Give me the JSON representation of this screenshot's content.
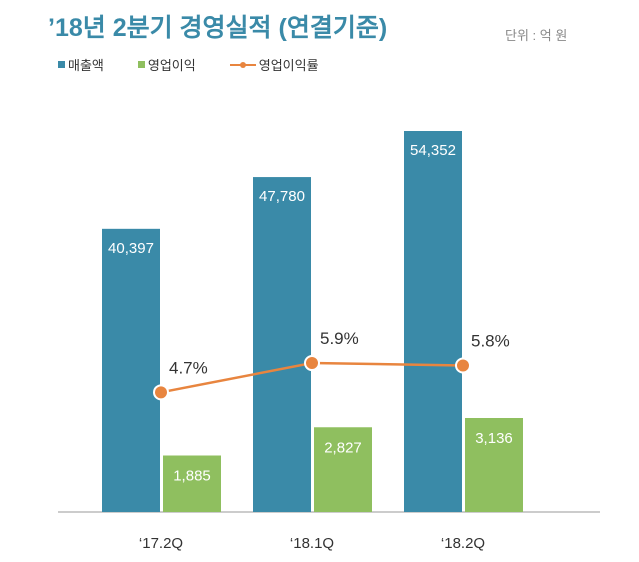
{
  "chart_data": {
    "type": "bar",
    "title": "’18년 2분기 경영실적 (연결기준)",
    "unit": "단위 : 억 원",
    "categories": [
      "‘17.2Q",
      "‘18.1Q",
      "‘18.2Q"
    ],
    "series": [
      {
        "name": "매출액",
        "type": "bar",
        "color": "#3a8aa8",
        "values": [
          40397,
          47780,
          54352
        ],
        "labels": [
          "40,397",
          "47,780",
          "54,352"
        ]
      },
      {
        "name": "영업이익",
        "type": "bar",
        "color": "#8fbf5f",
        "values": [
          1885,
          2827,
          3136
        ],
        "labels": [
          "1,885",
          "2,827",
          "3,136"
        ]
      },
      {
        "name": "영업이익률",
        "type": "line",
        "color": "#e8853f",
        "values": [
          4.7,
          5.9,
          5.8
        ],
        "labels": [
          "4.7%",
          "5.9%",
          "5.8%"
        ]
      }
    ],
    "legend": "top-left",
    "grid": false
  }
}
